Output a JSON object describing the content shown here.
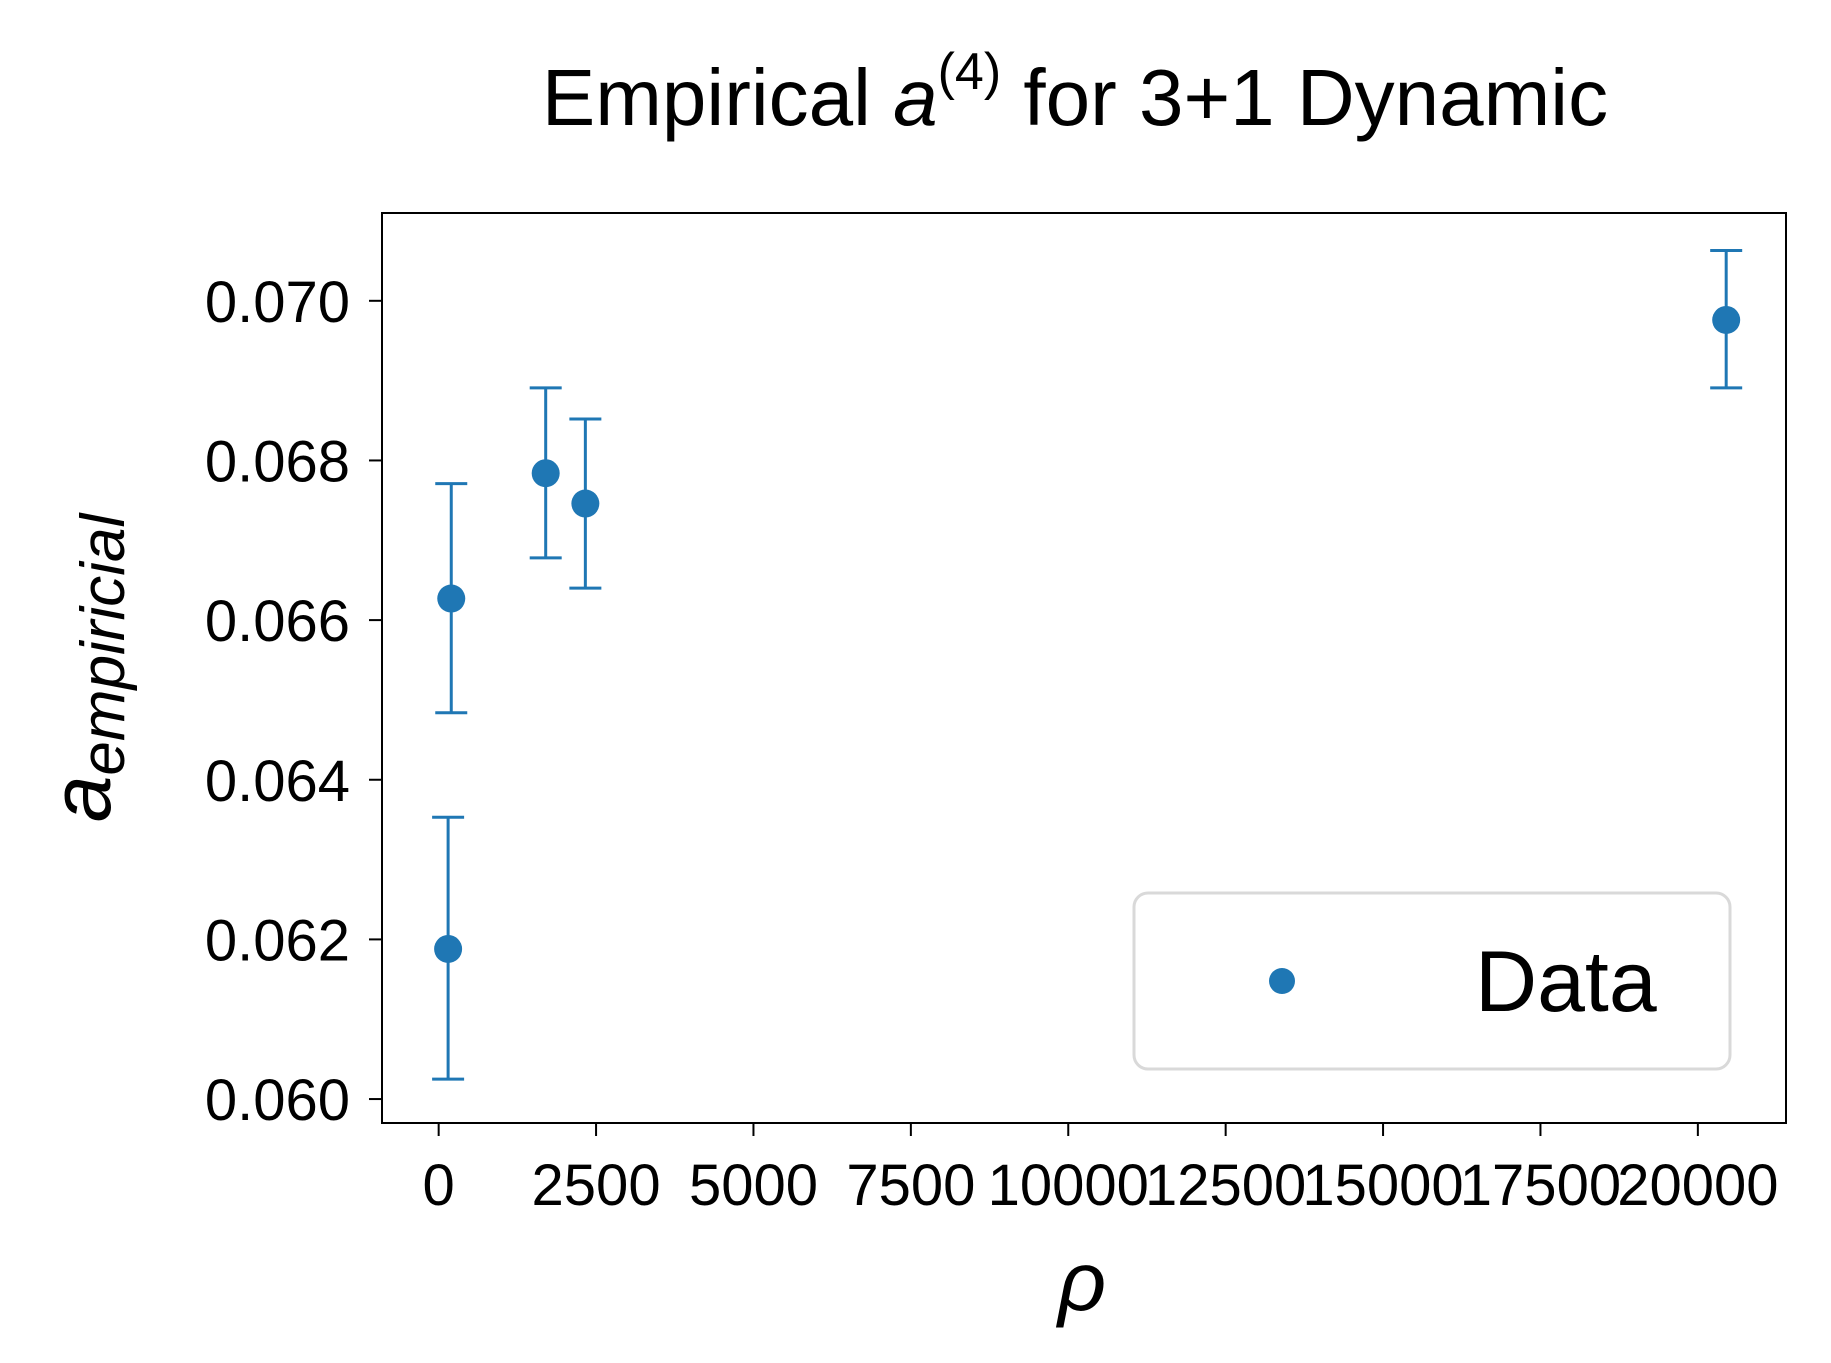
{
  "chart_data": {
    "type": "scatter",
    "title_main": "Empirical ",
    "title_symbol": "a",
    "title_superscript": "(4)",
    "title_rest": " for 3+1 Dynamic",
    "xlabel": "ρ",
    "ylabel_main": "a",
    "ylabel_sub": "empiricial",
    "xlim": [
      -900,
      21400
    ],
    "ylim": [
      0.0597,
      0.0711
    ],
    "xticks": [
      0,
      2500,
      5000,
      7500,
      10000,
      12500,
      15000,
      17500,
      20000
    ],
    "xtick_labels": [
      "0",
      "2500",
      "5000",
      "7500",
      "10000",
      "12500",
      "15000",
      "17500",
      "20000"
    ],
    "yticks": [
      0.06,
      0.062,
      0.064,
      0.066,
      0.068,
      0.07
    ],
    "ytick_labels": [
      "0.060",
      "0.062",
      "0.064",
      "0.066",
      "0.068",
      "0.070"
    ],
    "grid": false,
    "legend_position": "lower right",
    "series": [
      {
        "name": "Data",
        "color": "#1f77b4",
        "points": [
          {
            "x": 150,
            "y": 0.06188,
            "err_low": 0.06025,
            "err_high": 0.06353
          },
          {
            "x": 200,
            "y": 0.06627,
            "err_low": 0.06484,
            "err_high": 0.06771
          },
          {
            "x": 1700,
            "y": 0.06784,
            "err_low": 0.06678,
            "err_high": 0.06891
          },
          {
            "x": 2330,
            "y": 0.06746,
            "err_low": 0.0664,
            "err_high": 0.06852
          },
          {
            "x": 20450,
            "y": 0.06976,
            "err_low": 0.06891,
            "err_high": 0.07063
          }
        ]
      }
    ]
  }
}
